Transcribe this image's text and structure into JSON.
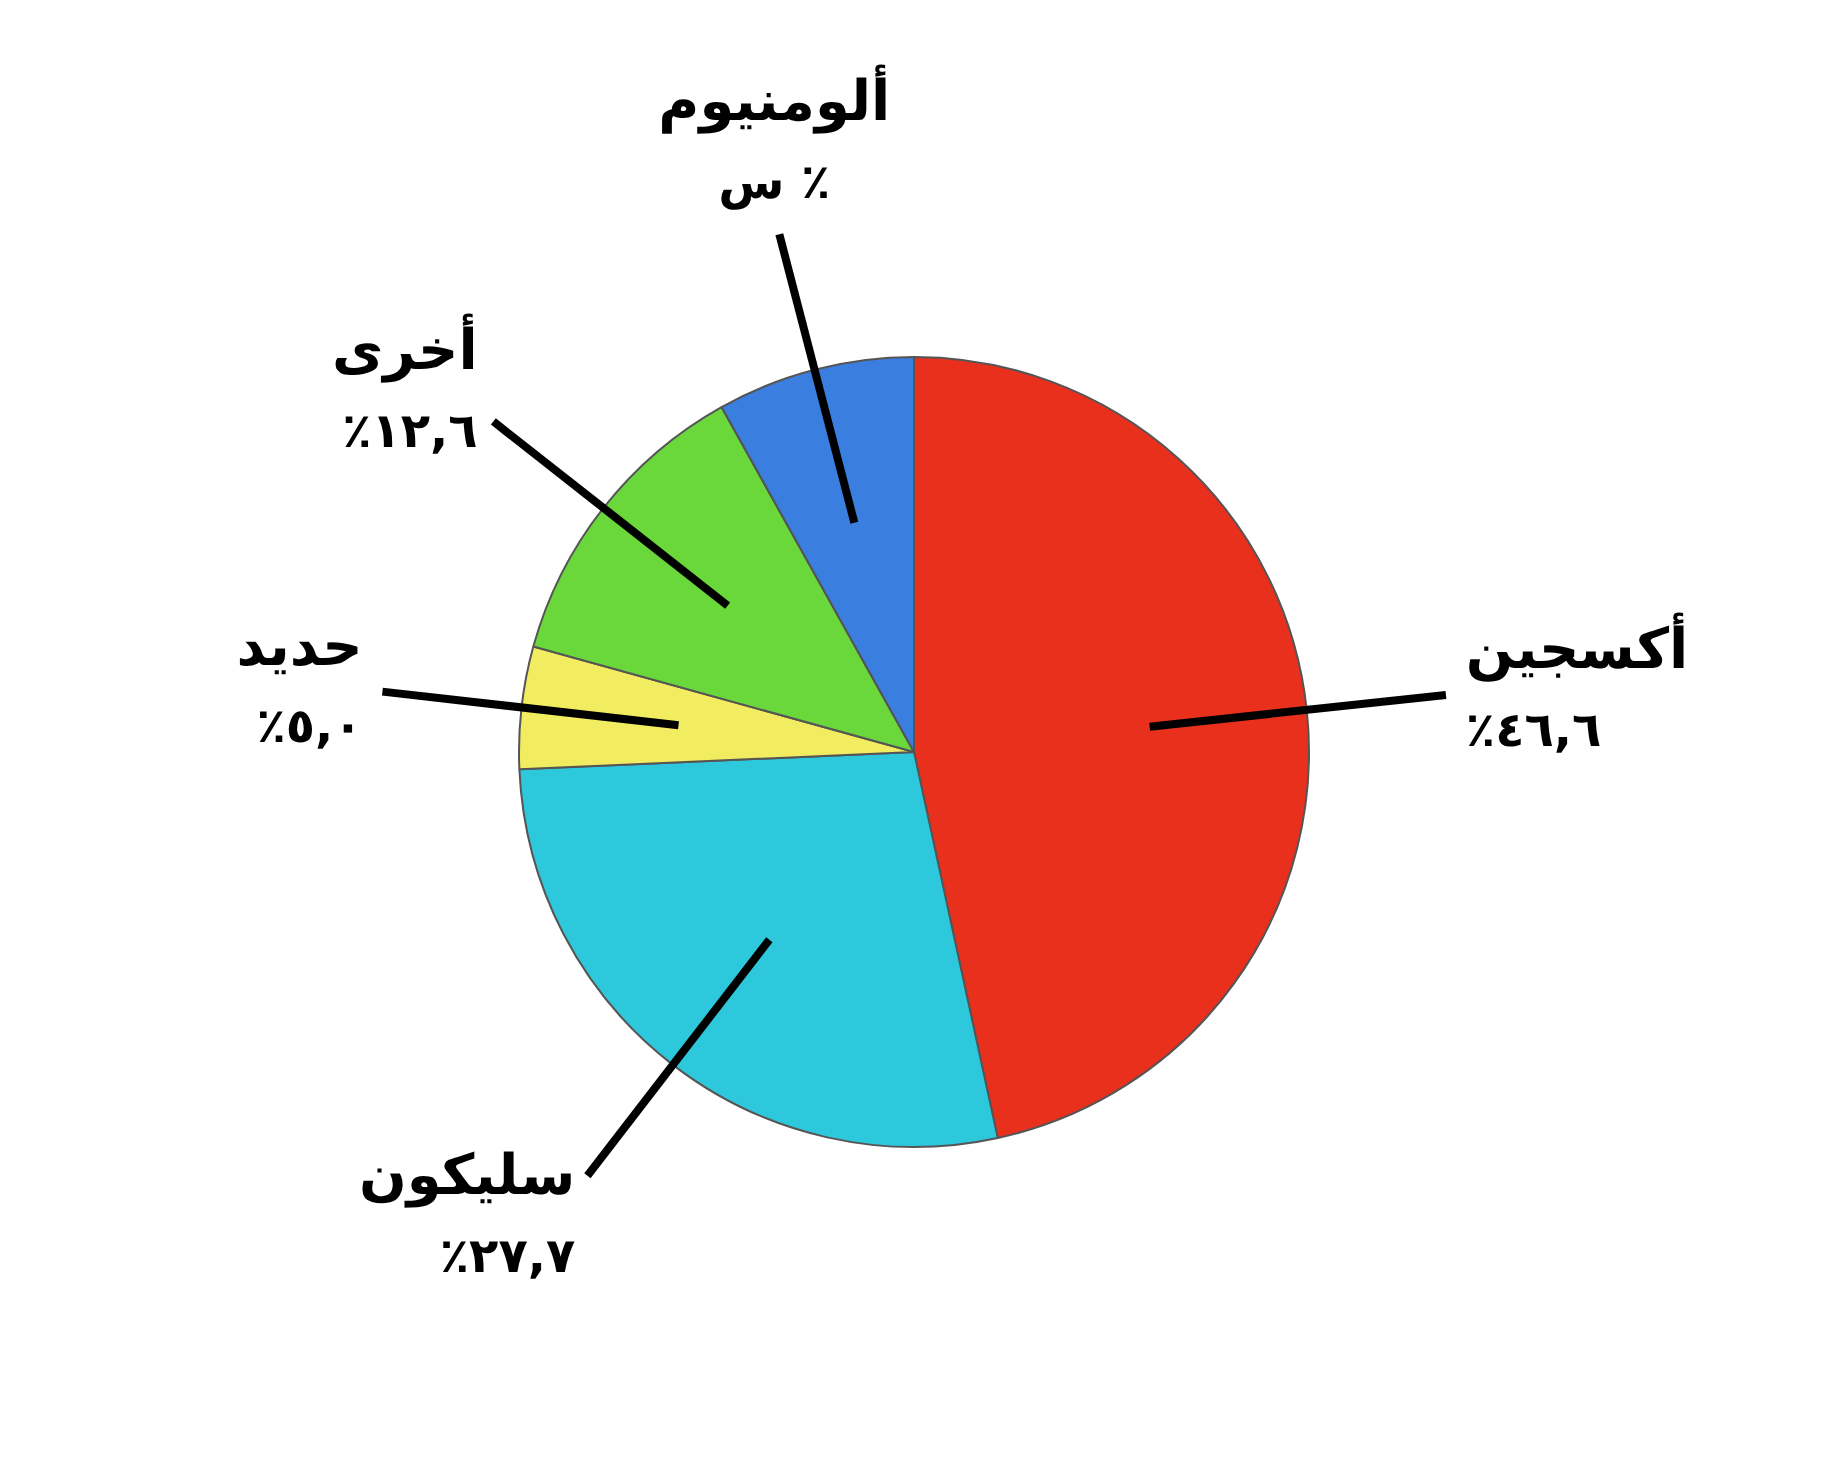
{
  "chart_data": {
    "type": "pie",
    "categories": [
      "أكسجين",
      "سليكون",
      "حديد",
      "أخرى",
      "ألومنيوم"
    ],
    "values": [
      46.6,
      27.7,
      5.0,
      12.6,
      8.1
    ],
    "value_labels": [
      "٪٤٦,٦",
      "٪٢٧,٧",
      "٪٥,٠",
      "٪١٢,٦",
      "س ٪"
    ],
    "colors": [
      "#e8301c",
      "#2ec8dc",
      "#f2ec60",
      "#6ad83a",
      "#3a7ee0"
    ],
    "legend": false
  }
}
